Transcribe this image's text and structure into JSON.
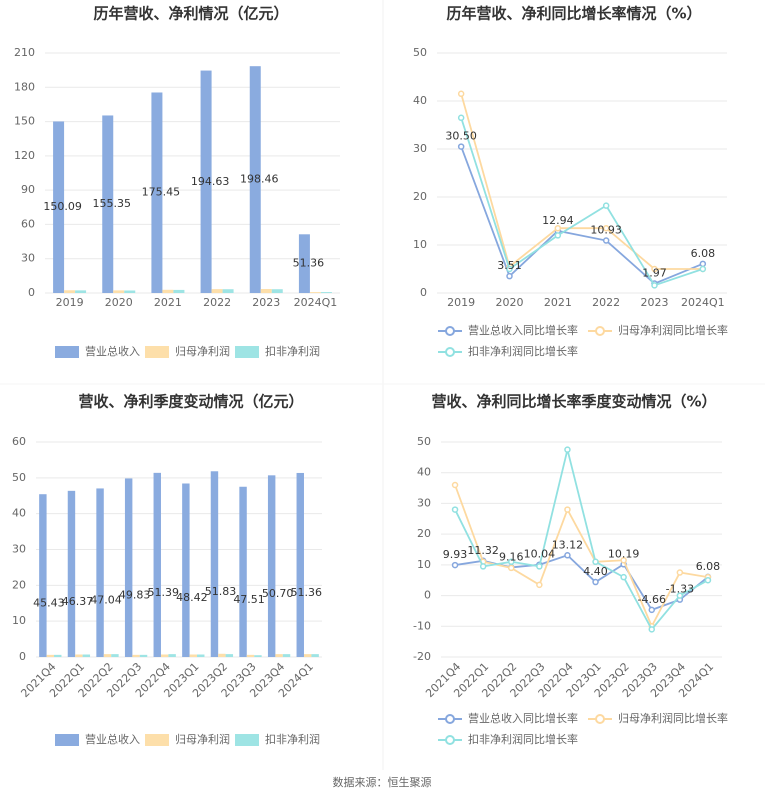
{
  "chart_data": [
    {
      "type": "bar",
      "title": "历年营收、净利情况（亿元）",
      "categories": [
        "2019",
        "2020",
        "2021",
        "2022",
        "2023",
        "2024Q1"
      ],
      "series": [
        {
          "name": "营业总收入",
          "color": "#8aabdf",
          "data_labels": true,
          "values": [
            150.09,
            155.35,
            175.45,
            194.63,
            198.46,
            51.36
          ]
        },
        {
          "name": "归母净利润",
          "color": "#fddfaa",
          "values": [
            2.4,
            2.3,
            2.8,
            3.4,
            3.5,
            0.8
          ]
        },
        {
          "name": "扣非净利润",
          "color": "#9ee4e4",
          "values": [
            2.3,
            2.2,
            2.7,
            3.3,
            3.3,
            0.8
          ]
        }
      ],
      "ylim": [
        0,
        210
      ],
      "yticks": [
        0,
        30,
        60,
        90,
        120,
        150,
        180,
        210
      ],
      "grid": true,
      "legend": "bottom"
    },
    {
      "type": "line",
      "title": "历年营收、净利同比增长率情况（%）",
      "categories": [
        "2019",
        "2020",
        "2021",
        "2022",
        "2023",
        "2024Q1"
      ],
      "series": [
        {
          "name": "营业总收入同比增长率",
          "color": "#86a7de",
          "data_labels": true,
          "values": [
            30.5,
            3.51,
            12.94,
            10.93,
            1.97,
            6.08
          ],
          "value_labels": [
            "30.50",
            "3.51",
            "12.94",
            "10.93",
            "1.97",
            "6.08"
          ]
        },
        {
          "name": "归母净利润同比增长率",
          "color": "#fdd9a0",
          "values": [
            41.5,
            5.5,
            13.5,
            13.5,
            5.0,
            5.0
          ]
        },
        {
          "name": "扣非净利润同比增长率",
          "color": "#91e1e1",
          "values": [
            36.5,
            5.0,
            12.0,
            18.2,
            1.6,
            5.0
          ]
        }
      ],
      "ylim": [
        0,
        50
      ],
      "yticks": [
        0,
        10,
        20,
        30,
        40,
        50
      ],
      "grid": true,
      "legend": "bottom"
    },
    {
      "type": "bar",
      "title": "营收、净利季度变动情况（亿元）",
      "categories": [
        "2021Q4",
        "2022Q1",
        "2022Q2",
        "2022Q3",
        "2022Q4",
        "2023Q1",
        "2023Q2",
        "2023Q3",
        "2023Q4",
        "2024Q1"
      ],
      "series": [
        {
          "name": "营业总收入",
          "color": "#8aabdf",
          "data_labels": true,
          "values": [
            45.43,
            46.37,
            47.04,
            49.83,
            51.39,
            48.42,
            51.83,
            47.51,
            50.7,
            51.36
          ],
          "value_labels": [
            "45.43",
            "46.37",
            "47.04",
            "49.83",
            "51.39",
            "48.42",
            "51.83",
            "47.51",
            "50.70",
            "51.36"
          ]
        },
        {
          "name": "归母净利润",
          "color": "#fddfaa",
          "values": [
            0.6,
            0.7,
            0.8,
            0.6,
            0.7,
            0.7,
            0.9,
            0.6,
            0.8,
            0.8
          ]
        },
        {
          "name": "扣非净利润",
          "color": "#9ee4e4",
          "values": [
            0.6,
            0.7,
            0.8,
            0.6,
            0.8,
            0.7,
            0.8,
            0.5,
            0.8,
            0.8
          ]
        }
      ],
      "ylim": [
        0,
        60
      ],
      "yticks": [
        0,
        10,
        20,
        30,
        40,
        50,
        60
      ],
      "grid": true,
      "legend": "bottom"
    },
    {
      "type": "line",
      "title": "营收、净利同比增长率季度变动情况（%）",
      "categories": [
        "2021Q4",
        "2022Q1",
        "2022Q2",
        "2022Q3",
        "2022Q4",
        "2023Q1",
        "2023Q2",
        "2023Q3",
        "2023Q4",
        "2024Q1"
      ],
      "series": [
        {
          "name": "营业总收入同比增长率",
          "color": "#86a7de",
          "data_labels": true,
          "values": [
            9.93,
            11.32,
            9.16,
            10.04,
            13.12,
            4.4,
            10.19,
            -4.66,
            -1.33,
            6.08
          ],
          "value_labels": [
            "9.93",
            "11.32",
            "9.16",
            "10.04",
            "13.12",
            "4.40",
            "10.19",
            "-4.66",
            "-1.33",
            "6.08"
          ]
        },
        {
          "name": "归母净利润同比增长率",
          "color": "#fdd9a0",
          "values": [
            36,
            11,
            9,
            3.5,
            28,
            11,
            11.5,
            -10,
            7.5,
            6
          ]
        },
        {
          "name": "扣非净利润同比增长率",
          "color": "#91e1e1",
          "values": [
            28,
            9.5,
            11,
            9.5,
            47.5,
            11,
            6,
            -11,
            0,
            5
          ]
        }
      ],
      "ylim": [
        -20,
        50
      ],
      "yticks": [
        -20,
        -10,
        0,
        10,
        20,
        30,
        40,
        50
      ],
      "grid": true,
      "legend": "bottom"
    }
  ],
  "source": "数据来源：恒生聚源"
}
